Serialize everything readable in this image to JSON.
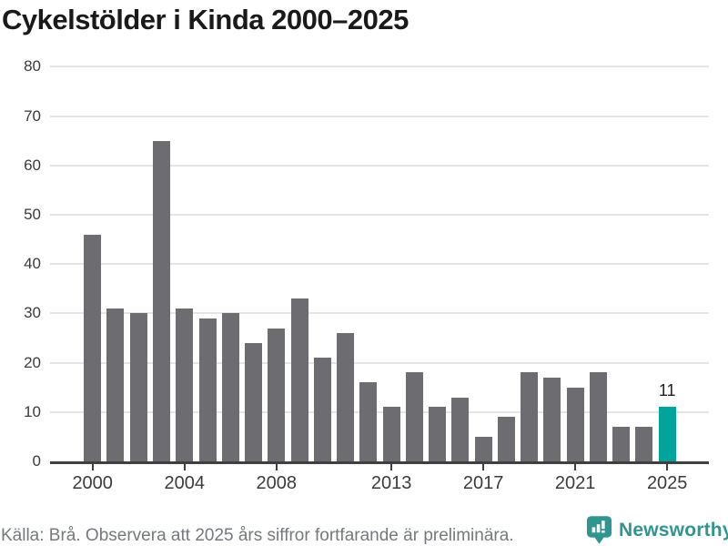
{
  "chart_data": {
    "type": "bar",
    "title": "Cykelstölder i Kinda 2000–2025",
    "categories": [
      2000,
      2001,
      2002,
      2003,
      2004,
      2005,
      2006,
      2007,
      2008,
      2009,
      2010,
      2011,
      2012,
      2013,
      2014,
      2015,
      2016,
      2017,
      2018,
      2019,
      2020,
      2021,
      2022,
      2023,
      2024,
      2025
    ],
    "values": [
      46,
      31,
      30,
      65,
      31,
      29,
      30,
      24,
      27,
      33,
      21,
      26,
      16,
      11,
      18,
      11,
      13,
      5,
      9,
      18,
      17,
      15,
      18,
      7,
      7,
      11
    ],
    "ylim": [
      0,
      80
    ],
    "yticks": [
      0,
      10,
      20,
      30,
      40,
      50,
      60,
      70,
      80
    ],
    "xtick_labels": [
      "2000",
      "2004",
      "2008",
      "2013",
      "2017",
      "2021",
      "2025"
    ],
    "grid": true,
    "legend": false,
    "bar_color": "#6c6c71",
    "gridline_color": "#e4e4e4",
    "axis_color": "#404040",
    "tick_label_color": "#3b3b3b",
    "highlight": {
      "category": 2025,
      "color": "#00a49a",
      "data_label": "11"
    }
  },
  "footer": {
    "source_note": "Källa: Brå. Observera att 2025 års siffror fortfarande är preliminära.",
    "brand_name": "Newsworthy",
    "brand_color": "#2f958e"
  }
}
